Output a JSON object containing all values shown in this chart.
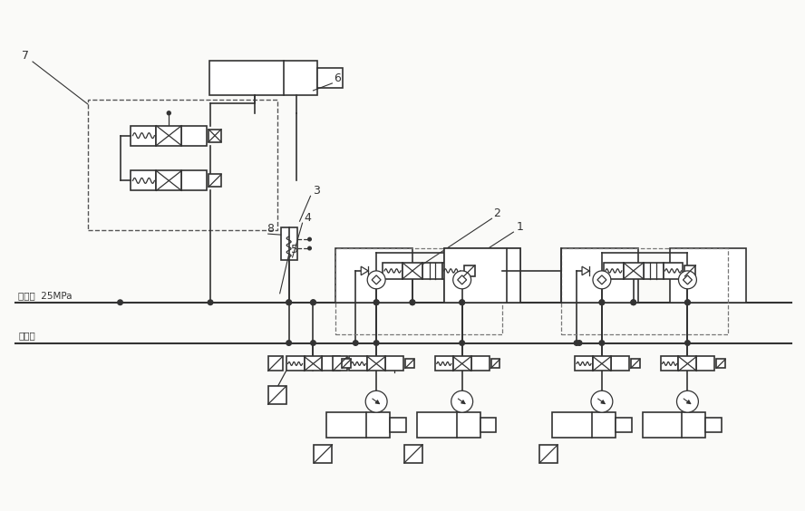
{
  "bg_color": "#FAFAF8",
  "line_color": "#333333",
  "pressure_text": "压力油  25MPa",
  "return_text": "回油筒",
  "figsize": [
    8.88,
    5.64
  ],
  "dpi": 100
}
